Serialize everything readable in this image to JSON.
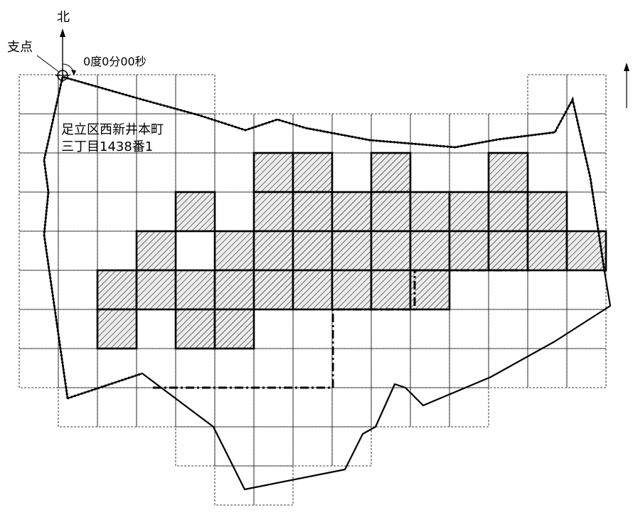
{
  "labels": {
    "north": "北",
    "pivot": "支点",
    "angle": "0度0分00秒",
    "address_line1": "足立区西新井本町",
    "address_line2": "三丁目1438番1"
  },
  "colors": {
    "line": "#000000",
    "grid": "#000000",
    "hatch_fill": "#e6e6e6",
    "background": "#ffffff"
  },
  "icons": {
    "north_arrow": "north-arrow-icon",
    "pivot_marker": "pivot-circle-icon",
    "edge_arrow": "vertical-arrow-icon"
  }
}
